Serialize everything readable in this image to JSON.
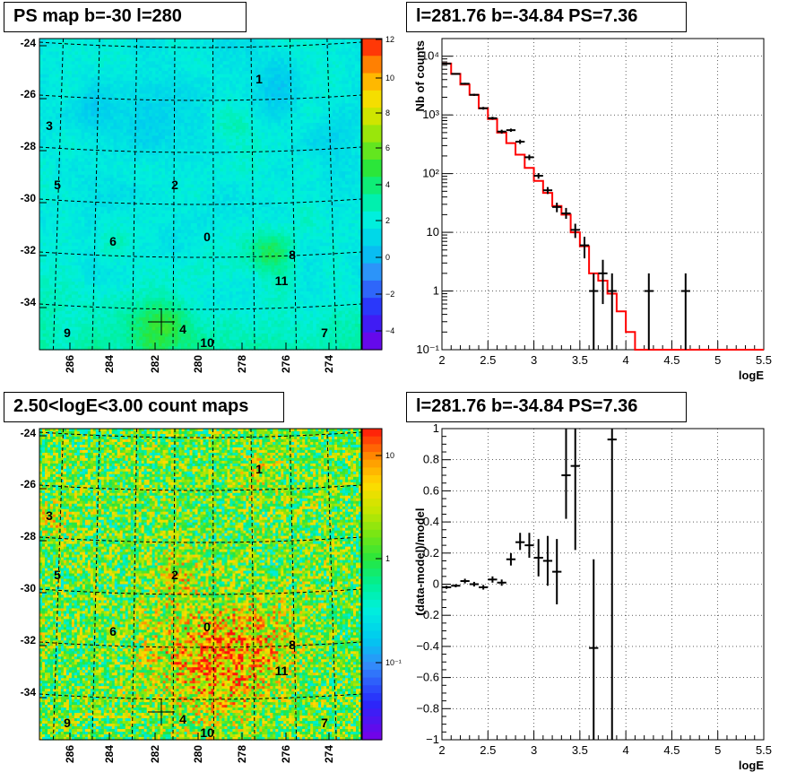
{
  "chart_data": [
    {
      "type": "heatmap",
      "title": "PS map b=-30 l=280",
      "xticks": [
        "286",
        "284",
        "282",
        "280",
        "278",
        "276",
        "274"
      ],
      "yticks": [
        "-24",
        "-26",
        "-28",
        "-30",
        "-32",
        "-34"
      ],
      "colorbar": {
        "scale": "linear",
        "min": -5,
        "max": 12,
        "ticks": [
          "12",
          "10",
          "8",
          "6",
          "4",
          "2",
          "0",
          "−2",
          "−4"
        ]
      },
      "sources": [
        {
          "id": "0",
          "l": 279.9,
          "b": -31.6
        },
        {
          "id": "1",
          "l": 276.8,
          "b": -25.6
        },
        {
          "id": "2",
          "l": 281.4,
          "b": -29.7
        },
        {
          "id": "3",
          "l": 287.5,
          "b": -27.3
        },
        {
          "id": "4",
          "l": 281.3,
          "b": -34.9
        },
        {
          "id": "5",
          "l": 287.2,
          "b": -29.9
        },
        {
          "id": "6",
          "l": 284.1,
          "b": -31.8
        },
        {
          "id": "7",
          "l": 273.5,
          "b": -34.9
        },
        {
          "id": "8",
          "l": 275.9,
          "b": -32.3
        },
        {
          "id": "9",
          "l": 286.3,
          "b": -35.0
        },
        {
          "id": "10",
          "l": 279.6,
          "b": -35.4
        },
        {
          "id": "11",
          "l": 276.2,
          "b": -33.2
        }
      ],
      "marker": {
        "l": 281.76,
        "b": -34.84
      }
    },
    {
      "type": "line",
      "title": "l=281.76 b=-34.84 PS=7.36",
      "xlabel": "logE",
      "ylabel": "Nb of counts",
      "xlim": [
        2,
        5.5
      ],
      "ylim": [
        0.1,
        20000
      ],
      "yscale": "log",
      "xticks": [
        "2",
        "2.5",
        "3",
        "3.5",
        "4",
        "4.5",
        "5",
        "5.5"
      ],
      "yticks": [
        "10⁻¹",
        "1",
        "10",
        "10²",
        "10³",
        "10⁴"
      ],
      "grid": true,
      "model": {
        "name": "model",
        "color": "#ff0000",
        "edges": [
          2.0,
          2.1,
          2.2,
          2.3,
          2.4,
          2.5,
          2.6,
          2.7,
          2.8,
          2.9,
          3.0,
          3.1,
          3.2,
          3.3,
          3.4,
          3.5,
          3.6,
          3.7,
          3.8,
          3.9,
          4.0,
          4.1,
          4.2,
          4.3,
          4.4,
          4.5,
          4.6,
          4.7,
          4.8,
          4.9,
          5.0,
          5.1,
          5.2,
          5.3,
          5.4,
          5.5
        ],
        "values": [
          7500,
          5000,
          3300,
          2200,
          1300,
          850,
          500,
          330,
          210,
          125,
          75,
          47,
          28,
          20,
          10,
          5.8,
          2.0,
          1.5,
          0.9,
          0.45,
          0.2,
          0.1,
          0.1,
          0.1,
          0.1,
          0.1,
          0.1,
          0.1,
          0.1,
          0.1,
          0.1,
          0.1,
          0.1,
          0.1,
          0.1
        ]
      },
      "data": {
        "name": "data",
        "color": "#000000",
        "points": [
          {
            "x": 2.05,
            "y": 7500,
            "lo": 7300,
            "hi": 7700
          },
          {
            "x": 2.15,
            "y": 5000,
            "lo": 4850,
            "hi": 5150
          },
          {
            "x": 2.25,
            "y": 3400,
            "lo": 3280,
            "hi": 3520
          },
          {
            "x": 2.35,
            "y": 2200,
            "lo": 2110,
            "hi": 2290
          },
          {
            "x": 2.45,
            "y": 1300,
            "lo": 1230,
            "hi": 1370
          },
          {
            "x": 2.55,
            "y": 880,
            "lo": 830,
            "hi": 930
          },
          {
            "x": 2.65,
            "y": 520,
            "lo": 480,
            "hi": 560
          },
          {
            "x": 2.75,
            "y": 550,
            "lo": 515,
            "hi": 585
          },
          {
            "x": 2.85,
            "y": 350,
            "lo": 320,
            "hi": 380
          },
          {
            "x": 2.95,
            "y": 190,
            "lo": 170,
            "hi": 210
          },
          {
            "x": 3.05,
            "y": 92,
            "lo": 82,
            "hi": 102
          },
          {
            "x": 3.15,
            "y": 52,
            "lo": 45,
            "hi": 59
          },
          {
            "x": 3.25,
            "y": 27,
            "lo": 22,
            "hi": 32
          },
          {
            "x": 3.35,
            "y": 21,
            "lo": 17,
            "hi": 26
          },
          {
            "x": 3.45,
            "y": 11,
            "lo": 8,
            "hi": 14
          },
          {
            "x": 3.55,
            "y": 6,
            "lo": 3.6,
            "hi": 8.4
          },
          {
            "x": 3.65,
            "y": 1,
            "lo": 0.1,
            "hi": 2.0
          },
          {
            "x": 3.75,
            "y": 2,
            "lo": 0.6,
            "hi": 3.4
          },
          {
            "x": 3.85,
            "y": 1,
            "lo": 0.1,
            "hi": 2.0
          },
          {
            "x": 4.25,
            "y": 1,
            "lo": 0.1,
            "hi": 2.0
          },
          {
            "x": 4.65,
            "y": 1,
            "lo": 0.1,
            "hi": 2.0
          }
        ]
      }
    },
    {
      "type": "heatmap",
      "title": "2.50<logE<3.00 count maps",
      "xticks": [
        "286",
        "284",
        "282",
        "280",
        "278",
        "276",
        "274"
      ],
      "yticks": [
        "-24",
        "-26",
        "-28",
        "-30",
        "-32",
        "-34"
      ],
      "colorbar": {
        "scale": "log",
        "ticks": [
          "10",
          "1",
          "10⁻¹"
        ]
      }
    },
    {
      "type": "scatter",
      "title": "l=281.76 b=-34.84 PS=7.36",
      "xlabel": "logE",
      "ylabel": "(data-model)/model",
      "xlim": [
        2,
        5.5
      ],
      "ylim": [
        -1,
        1
      ],
      "xticks": [
        "2",
        "2.5",
        "3",
        "3.5",
        "4",
        "4.5",
        "5",
        "5.5"
      ],
      "yticks": [
        "−1",
        "−0.8",
        "−0.6",
        "−0.4",
        "−0.2",
        "0",
        "0.2",
        "0.4",
        "0.6",
        "0.8",
        "1"
      ],
      "grid": true,
      "points": [
        {
          "x": 2.05,
          "y": -0.02,
          "lo": -0.03,
          "hi": -0.01
        },
        {
          "x": 2.15,
          "y": -0.01,
          "lo": -0.02,
          "hi": 0.0
        },
        {
          "x": 2.25,
          "y": 0.02,
          "lo": 0.005,
          "hi": 0.035
        },
        {
          "x": 2.35,
          "y": 0.0,
          "lo": -0.015,
          "hi": 0.015
        },
        {
          "x": 2.45,
          "y": -0.02,
          "lo": -0.035,
          "hi": -0.005
        },
        {
          "x": 2.55,
          "y": 0.03,
          "lo": 0.01,
          "hi": 0.05
        },
        {
          "x": 2.65,
          "y": 0.01,
          "lo": -0.01,
          "hi": 0.03
        },
        {
          "x": 2.75,
          "y": 0.16,
          "lo": 0.12,
          "hi": 0.2
        },
        {
          "x": 2.85,
          "y": 0.27,
          "lo": 0.22,
          "hi": 0.33
        },
        {
          "x": 2.95,
          "y": 0.25,
          "lo": 0.17,
          "hi": 0.33
        },
        {
          "x": 3.05,
          "y": 0.17,
          "lo": 0.05,
          "hi": 0.29
        },
        {
          "x": 3.15,
          "y": 0.15,
          "lo": -0.01,
          "hi": 0.31
        },
        {
          "x": 3.25,
          "y": 0.08,
          "lo": -0.13,
          "hi": 0.29
        },
        {
          "x": 3.35,
          "y": 0.7,
          "lo": 0.42,
          "hi": 1.0
        },
        {
          "x": 3.45,
          "y": 0.76,
          "lo": 0.22,
          "hi": 1.0
        },
        {
          "x": 3.65,
          "y": -0.41,
          "lo": -1.0,
          "hi": 0.16
        },
        {
          "x": 3.85,
          "y": 0.93,
          "lo": -1.0,
          "hi": 1.0
        }
      ]
    }
  ]
}
